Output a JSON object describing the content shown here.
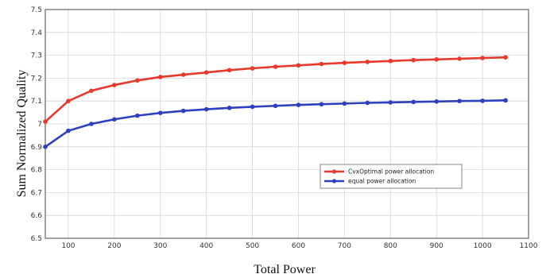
{
  "chart_data": {
    "type": "line",
    "title": "",
    "xlabel": "Total Power",
    "ylabel": "Sum Normalized Quality",
    "xlim": [
      50,
      1100
    ],
    "ylim": [
      6.5,
      7.5
    ],
    "xticks": [
      100,
      200,
      300,
      400,
      500,
      600,
      700,
      800,
      900,
      1000,
      1100
    ],
    "xtick_labels": [
      "100",
      "200",
      "300",
      "400",
      "500",
      "600",
      "700",
      "800",
      "900",
      "1000",
      "1100"
    ],
    "yticks": [
      6.5,
      6.6,
      6.7,
      6.8,
      6.9,
      7,
      7.1,
      7.2,
      7.3,
      7.4,
      7.5
    ],
    "ytick_labels": [
      "6.5",
      "6.6",
      "6.7",
      "6.8",
      "6.9",
      "7",
      "7.1",
      "7.2",
      "7.3",
      "7.4",
      "7.5"
    ],
    "grid": true,
    "legend_position": "lower-right",
    "x": [
      50,
      100,
      150,
      200,
      250,
      300,
      350,
      400,
      450,
      500,
      550,
      600,
      650,
      700,
      750,
      800,
      850,
      900,
      950,
      1000,
      1050
    ],
    "series": [
      {
        "name": "CvxOptimal power allocation",
        "color": "#e8392b",
        "values": [
          7.01,
          7.1,
          7.145,
          7.17,
          7.19,
          7.205,
          7.215,
          7.225,
          7.235,
          7.243,
          7.25,
          7.256,
          7.262,
          7.267,
          7.271,
          7.275,
          7.279,
          7.282,
          7.285,
          7.288,
          7.291
        ]
      },
      {
        "name": "equal power allocation",
        "color": "#2e3fbf",
        "values": [
          6.9,
          6.97,
          7.0,
          7.02,
          7.036,
          7.048,
          7.057,
          7.064,
          7.07,
          7.075,
          7.079,
          7.083,
          7.086,
          7.089,
          7.092,
          7.094,
          7.096,
          7.098,
          7.1,
          7.101,
          7.103
        ]
      }
    ]
  }
}
